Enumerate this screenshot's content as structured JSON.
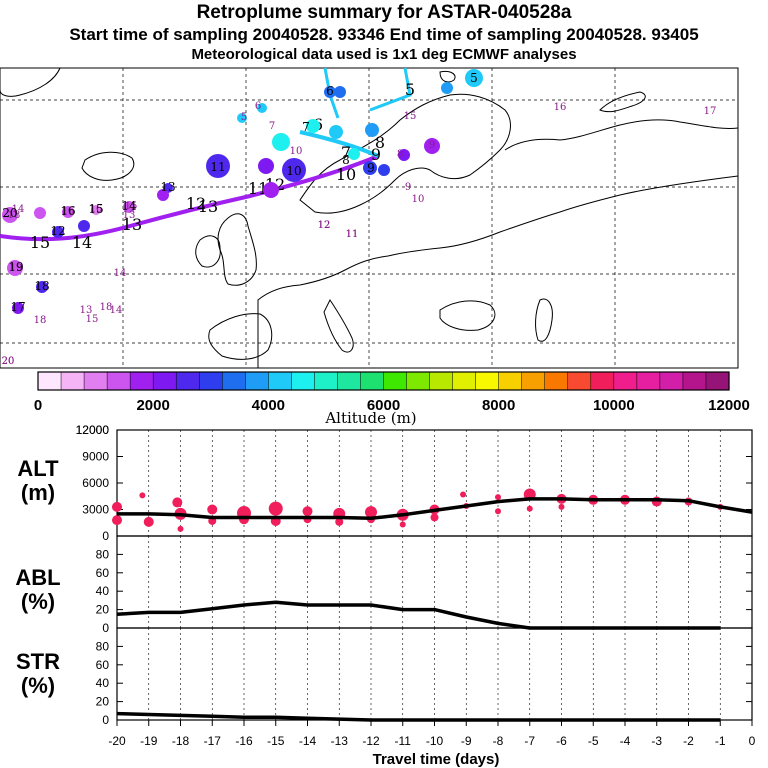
{
  "header": {
    "title": "Retroplume summary for ASTAR-040528a",
    "line2": "Start time of sampling 20040528. 93346     End time of sampling 20040528. 93405",
    "line3": "Meteorological data used is 1x1 deg ECMWF analyses"
  },
  "colorbar": {
    "label": "Altitude (m)",
    "ticks": [
      "0",
      "2000",
      "4000",
      "6000",
      "8000",
      "10000",
      "12000"
    ],
    "colors": [
      "#ffe6ff",
      "#f5b4f5",
      "#e27ff0",
      "#cc55f0",
      "#a020f0",
      "#7f19f2",
      "#4f28ee",
      "#2e3eee",
      "#1f6ef0",
      "#1f9cf5",
      "#1fcaf8",
      "#1ef0f0",
      "#1ef0c8",
      "#1ee8a0",
      "#1ee070",
      "#3fe800",
      "#7ee800",
      "#b8e800",
      "#e0f000",
      "#f8f800",
      "#f8d000",
      "#f8a000",
      "#f87800",
      "#f84a30",
      "#f01e5a",
      "#f01e8c",
      "#e61ea0",
      "#d21ea8",
      "#b4148c",
      "#961478"
    ]
  },
  "map": {
    "trajectory_labels": [
      {
        "t": "20",
        "c": "#cc55f0"
      },
      {
        "t": "19",
        "c": "#cc55f0"
      },
      {
        "t": "18",
        "c": "#cc55f0"
      },
      {
        "t": "17",
        "c": "#a020f0"
      },
      {
        "t": "16",
        "c": "#a020f0"
      },
      {
        "t": "15",
        "c": "#4f28ee"
      },
      {
        "t": "14",
        "c": "#4f28ee"
      },
      {
        "t": "13",
        "c": "#1f6ef0"
      },
      {
        "t": "12",
        "c": "#1f6ef0"
      },
      {
        "t": "11",
        "c": "#4f28ee"
      },
      {
        "t": "10",
        "c": "#2e3eee"
      },
      {
        "t": "9",
        "c": "#2e3eee"
      },
      {
        "t": "8",
        "c": "#1fcaf8"
      },
      {
        "t": "7",
        "c": "#1ef0f0"
      },
      {
        "t": "6",
        "c": "#1fcaf8"
      },
      {
        "t": "5",
        "c": "#1f9cf5"
      }
    ],
    "line_labels": [
      "15",
      "14",
      "13",
      "12",
      "13",
      "12",
      "11",
      "10",
      "9",
      "8",
      "7",
      "6",
      "5"
    ],
    "scatter_labels": [
      "20",
      "19",
      "18",
      "18",
      "16",
      "16",
      "15",
      "14",
      "13",
      "13",
      "12",
      "11",
      "10",
      "9",
      "9",
      "8",
      "7",
      "6",
      "5",
      "16",
      "17",
      "15",
      "14",
      "18",
      "15",
      "14",
      "20",
      "10",
      "12",
      "11"
    ]
  },
  "chart_data": [
    {
      "type": "line",
      "panel": "ALT",
      "ylabel": "ALT (m)",
      "ylim": [
        0,
        12000
      ],
      "yticks": [
        "0",
        "3000",
        "6000",
        "9000",
        "12000"
      ],
      "x": [
        -20,
        -19,
        -18,
        -17,
        -16,
        -15,
        -14,
        -13,
        -12,
        -11,
        -10,
        -9,
        -8,
        -7,
        -6,
        -5,
        -4,
        -3,
        -2,
        -1,
        0
      ],
      "values": [
        2500,
        2500,
        2400,
        2100,
        2100,
        2100,
        2100,
        2100,
        2000,
        2400,
        2900,
        3400,
        3900,
        4200,
        4200,
        4100,
        4100,
        4100,
        4000,
        3300,
        2700
      ],
      "scatter_x": [
        -20,
        -20,
        -19.2,
        -19,
        -18.1,
        -18,
        -18,
        -17,
        -17,
        -16,
        -16,
        -15,
        -15,
        -14,
        -14,
        -13,
        -13,
        -12,
        -12,
        -11,
        -11,
        -10,
        -10,
        -9.1,
        -9,
        -8,
        -8,
        -7,
        -7,
        -6,
        -6,
        -5,
        -4,
        -3,
        -2,
        -1
      ],
      "scatter_y": [
        3300,
        1800,
        4600,
        1600,
        3800,
        2500,
        800,
        3000,
        1700,
        2600,
        1900,
        3100,
        1700,
        2800,
        1900,
        2500,
        1600,
        2700,
        1900,
        2400,
        1300,
        3000,
        2100,
        4700,
        3400,
        4400,
        2800,
        4700,
        3100,
        4200,
        3300,
        4100,
        4100,
        3900,
        3900,
        3300
      ],
      "scatter_r": [
        5,
        5,
        3,
        5,
        5,
        6,
        3,
        5,
        4,
        7,
        5,
        7,
        5,
        5,
        4,
        6,
        4,
        6,
        4,
        6,
        3,
        5,
        4,
        3,
        3,
        3,
        3,
        6,
        3,
        5,
        3,
        5,
        5,
        5,
        4,
        3
      ],
      "xlabel": "Travel time (days)"
    },
    {
      "type": "line",
      "panel": "ABL",
      "ylabel": "ABL (%)",
      "ylim": [
        0,
        100
      ],
      "yticks": [
        "0",
        "20",
        "40",
        "60",
        "80"
      ],
      "x": [
        -20,
        -19,
        -18,
        -17,
        -16,
        -15,
        -14,
        -13,
        -12,
        -11,
        -10,
        -9,
        -8,
        -7,
        -6,
        -5,
        -4,
        -3,
        -2,
        -1
      ],
      "values": [
        15,
        17,
        17,
        21,
        25,
        28,
        25,
        25,
        25,
        20,
        20,
        12,
        5,
        0,
        0,
        0,
        0,
        0,
        0,
        0
      ]
    },
    {
      "type": "line",
      "panel": "STR",
      "ylabel": "STR (%)",
      "ylim": [
        0,
        100
      ],
      "yticks": [
        "0",
        "20",
        "40",
        "60",
        "80"
      ],
      "x": [
        -20,
        -19,
        -18,
        -17,
        -16,
        -15,
        -14,
        -13,
        -12,
        -11,
        -10,
        -9,
        -8,
        -7,
        -6,
        -5,
        -4,
        -3,
        -2,
        -1
      ],
      "values": [
        7,
        6,
        5,
        4,
        3,
        3,
        2,
        1,
        0,
        0,
        0,
        0,
        0,
        0,
        0,
        0,
        0,
        0,
        0,
        0
      ],
      "xticks": [
        "-20",
        "-19",
        "-18",
        "-17",
        "-16",
        "-15",
        "-14",
        "-13",
        "-12",
        "-11",
        "-10",
        "-9",
        "-8",
        "-7",
        "-6",
        "-5",
        "-4",
        "-3",
        "-2",
        "-1",
        "0"
      ],
      "xlabel": "Travel time (days)"
    }
  ],
  "panels": {
    "alt": {
      "name": "ALT",
      "unit": "(m)"
    },
    "abl": {
      "name": "ABL",
      "unit": "(%)"
    },
    "str": {
      "name": "STR",
      "unit": "(%)"
    }
  }
}
